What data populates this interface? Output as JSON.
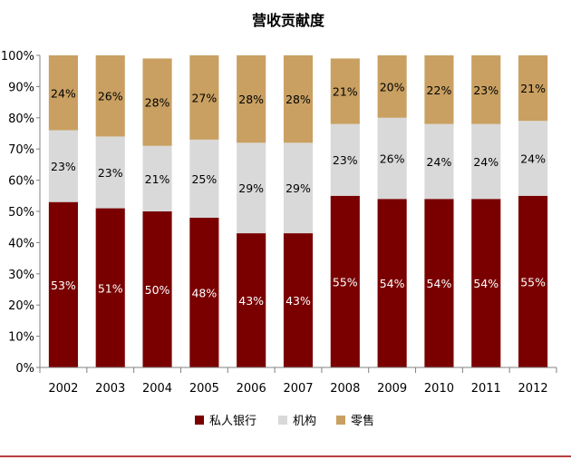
{
  "chart_data": {
    "type": "bar",
    "stacked": true,
    "title": "营收贡献度",
    "xlabel": "",
    "ylabel": "",
    "ylim": [
      0,
      100
    ],
    "yticks": [
      "0%",
      "10%",
      "20%",
      "30%",
      "40%",
      "50%",
      "60%",
      "70%",
      "80%",
      "90%",
      "100%"
    ],
    "categories": [
      "2002",
      "2003",
      "2004",
      "2005",
      "2006",
      "2007",
      "2008",
      "2009",
      "2010",
      "2011",
      "2012"
    ],
    "series": [
      {
        "name": "私人银行",
        "color": "#7a0000",
        "label_color": "#ffffff",
        "values": [
          53,
          51,
          50,
          48,
          43,
          43,
          55,
          54,
          54,
          54,
          55
        ],
        "labels": [
          "53%",
          "51%",
          "50%",
          "48%",
          "43%",
          "43%",
          "55%",
          "54%",
          "54%",
          "54%",
          "55%"
        ]
      },
      {
        "name": "机构",
        "color": "#d9d9d9",
        "label_color": "#000000",
        "values": [
          23,
          23,
          21,
          25,
          29,
          29,
          23,
          26,
          24,
          24,
          24
        ],
        "labels": [
          "23%",
          "23%",
          "21%",
          "25%",
          "29%",
          "29%",
          "23%",
          "26%",
          "24%",
          "24%",
          "24%"
        ]
      },
      {
        "name": "零售",
        "color": "#c9a062",
        "label_color": "#000000",
        "values": [
          24,
          26,
          28,
          27,
          28,
          28,
          21,
          20,
          22,
          23,
          21
        ],
        "labels": [
          "24%",
          "26%",
          "28%",
          "27%",
          "28%",
          "28%",
          "21%",
          "20%",
          "22%",
          "23%",
          "21%"
        ]
      }
    ],
    "grid": false,
    "legend_position": "bottom"
  }
}
